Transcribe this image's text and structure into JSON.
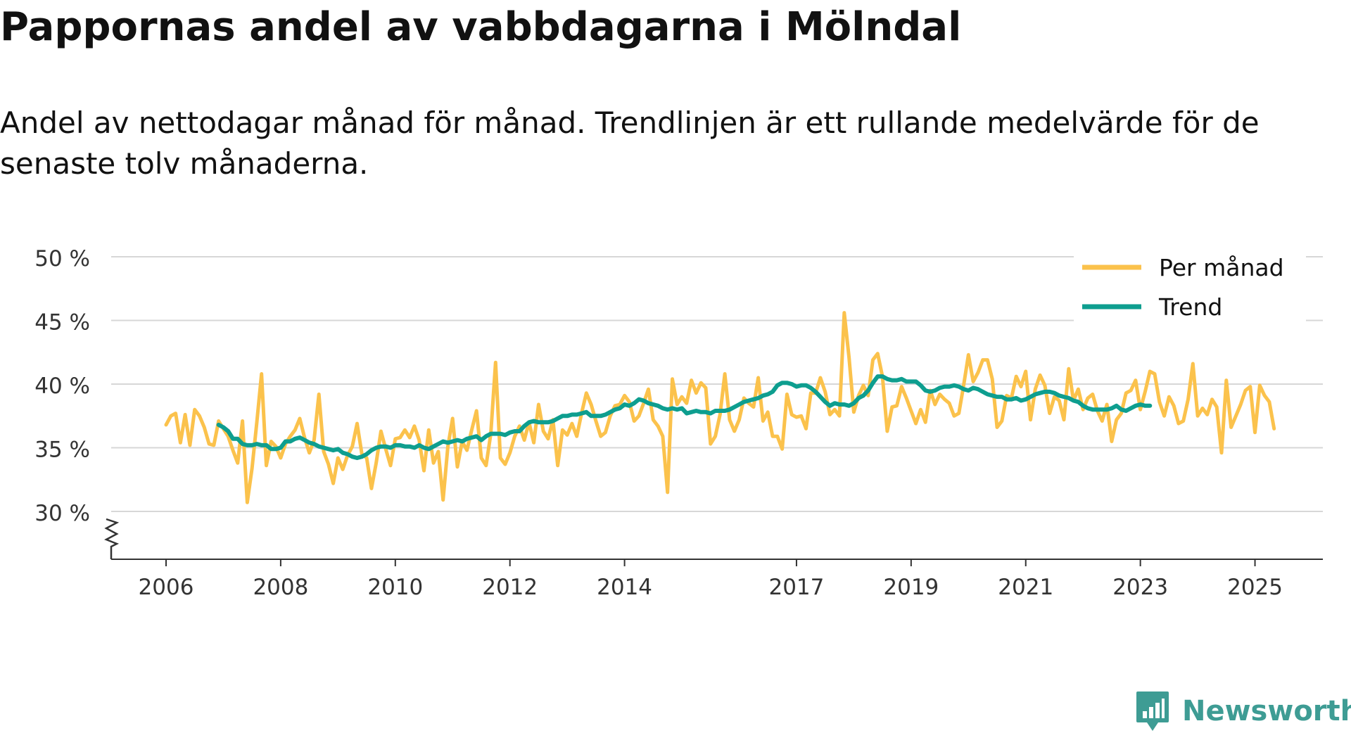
{
  "chart_data": {
    "type": "line",
    "title": "Pappornas andel av vabbdagarna i Mölndal",
    "subtitle": "Andel av nettodagar månad för månad. Trendlinjen är ett rullande medelvärde för de senaste tolv månaderna.",
    "xlabel": "",
    "ylabel": "",
    "ylim": [
      27,
      50
    ],
    "y_ticks": [
      30,
      35,
      40,
      45,
      50
    ],
    "y_tick_labels": [
      "30 %",
      "35 %",
      "40 %",
      "45 %",
      "50 %"
    ],
    "x_ticks": [
      2006,
      2008,
      2010,
      2012,
      2014,
      2017,
      2019,
      2021,
      2023,
      2025
    ],
    "x_tick_labels": [
      "2006",
      "2008",
      "2010",
      "2012",
      "2014",
      "2017",
      "2019",
      "2021",
      "2023",
      "2025"
    ],
    "x_range": [
      2006.0,
      2025.58
    ],
    "grid": true,
    "axis_break": true,
    "legend": {
      "position": "top-right"
    },
    "series": [
      {
        "name": "Per månad",
        "color": "#fbc24c",
        "x_start": 2006.0,
        "x_step": 0.0833333,
        "values": [
          36.8,
          37.5,
          37.7,
          35.4,
          37.6,
          35.2,
          38.0,
          37.5,
          36.6,
          35.3,
          35.2,
          37.1,
          36.5,
          35.9,
          34.8,
          33.8,
          37.1,
          30.7,
          33.4,
          37.0,
          40.8,
          33.6,
          35.5,
          35.1,
          34.2,
          35.3,
          35.9,
          36.4,
          37.3,
          35.8,
          34.6,
          35.6,
          39.2,
          34.7,
          33.7,
          32.2,
          34.2,
          33.3,
          34.4,
          35.1,
          36.9,
          34.5,
          34.2,
          31.8,
          33.8,
          36.3,
          34.9,
          33.6,
          35.7,
          35.8,
          36.4,
          35.8,
          36.7,
          35.6,
          33.2,
          36.4,
          33.8,
          34.7,
          30.9,
          35.1,
          37.3,
          33.5,
          35.5,
          34.8,
          36.4,
          37.9,
          34.2,
          33.6,
          36.1,
          41.7,
          34.2,
          33.7,
          34.6,
          35.9,
          36.7,
          35.6,
          37.0,
          35.4,
          38.4,
          36.3,
          35.7,
          37.2,
          33.6,
          36.4,
          36.0,
          36.9,
          35.9,
          37.7,
          39.3,
          38.4,
          37.1,
          35.9,
          36.2,
          37.5,
          38.3,
          38.4,
          39.1,
          38.6,
          37.1,
          37.5,
          38.5,
          39.6,
          37.2,
          36.7,
          35.9,
          31.5,
          40.4,
          38.4,
          39.0,
          38.5,
          40.3,
          39.3,
          40.1,
          39.7,
          35.3,
          35.9,
          37.6,
          40.8,
          37.2,
          36.3,
          37.2,
          38.9,
          38.5,
          38.2,
          40.5,
          37.1,
          37.8,
          35.9,
          35.9,
          34.9,
          39.2,
          37.6,
          37.4,
          37.5,
          36.5,
          39.3,
          39.3,
          40.5,
          39.4,
          37.6,
          38.0,
          37.5,
          45.6,
          42.1,
          37.8,
          39.1,
          39.9,
          39.1,
          41.9,
          42.4,
          40.6,
          36.3,
          38.2,
          38.3,
          39.8,
          38.9,
          37.9,
          36.9,
          38.0,
          37.0,
          39.5,
          38.4,
          39.2,
          38.8,
          38.5,
          37.5,
          37.7,
          39.9,
          42.3,
          40.2,
          40.9,
          41.9,
          41.9,
          40.4,
          36.6,
          37.1,
          39.1,
          38.9,
          40.6,
          39.8,
          41.0,
          37.2,
          39.6,
          40.7,
          39.9,
          37.7,
          39.0,
          38.7,
          37.2,
          41.2,
          38.7,
          39.6,
          38.0,
          38.9,
          39.2,
          37.9,
          37.1,
          38.4,
          35.5,
          37.2,
          37.7,
          39.3,
          39.5,
          40.3,
          38.0,
          39.4,
          41.0,
          40.8,
          38.6,
          37.5,
          39.0,
          38.3,
          36.9,
          37.1,
          38.8,
          41.6,
          37.5,
          38.1,
          37.6,
          38.8,
          38.2,
          34.6,
          40.3,
          36.6,
          37.5,
          38.4,
          39.5,
          39.8,
          36.2,
          39.9,
          39.1,
          38.6,
          36.5
        ]
      },
      {
        "name": "Trend",
        "color": "#0e9e8f",
        "x_start": 2006.917,
        "x_step": 0.0833333,
        "values": [
          36.8,
          36.6,
          36.3,
          35.7,
          35.7,
          35.3,
          35.2,
          35.2,
          35.3,
          35.2,
          35.2,
          34.9,
          34.9,
          35.0,
          35.5,
          35.5,
          35.7,
          35.8,
          35.6,
          35.4,
          35.3,
          35.1,
          35.0,
          34.9,
          34.8,
          34.9,
          34.6,
          34.5,
          34.3,
          34.2,
          34.3,
          34.5,
          34.8,
          35.0,
          35.1,
          35.1,
          35.0,
          35.2,
          35.2,
          35.1,
          35.1,
          35.0,
          35.2,
          35.0,
          34.9,
          35.1,
          35.3,
          35.5,
          35.4,
          35.5,
          35.6,
          35.5,
          35.7,
          35.8,
          35.9,
          35.6,
          35.9,
          36.1,
          36.1,
          36.1,
          36.0,
          36.2,
          36.3,
          36.3,
          36.7,
          37.0,
          37.1,
          37.0,
          37.0,
          37.0,
          37.1,
          37.3,
          37.5,
          37.5,
          37.6,
          37.6,
          37.7,
          37.8,
          37.5,
          37.5,
          37.5,
          37.6,
          37.8,
          38.0,
          38.1,
          38.4,
          38.3,
          38.5,
          38.8,
          38.7,
          38.5,
          38.4,
          38.3,
          38.1,
          38.0,
          38.1,
          38.0,
          38.1,
          37.7,
          37.8,
          37.9,
          37.8,
          37.8,
          37.7,
          37.9,
          37.9,
          37.9,
          38.0,
          38.2,
          38.4,
          38.6,
          38.7,
          38.8,
          38.9,
          39.1,
          39.2,
          39.4,
          39.9,
          40.1,
          40.1,
          40.0,
          39.8,
          39.9,
          39.9,
          39.7,
          39.4,
          39.0,
          38.6,
          38.3,
          38.5,
          38.4,
          38.4,
          38.3,
          38.5,
          38.9,
          39.1,
          39.5,
          40.1,
          40.6,
          40.6,
          40.4,
          40.3,
          40.3,
          40.4,
          40.2,
          40.2,
          40.2,
          39.9,
          39.5,
          39.4,
          39.5,
          39.7,
          39.8,
          39.8,
          39.9,
          39.8,
          39.6,
          39.5,
          39.7,
          39.6,
          39.4,
          39.2,
          39.1,
          39.0,
          39.0,
          38.8,
          38.8,
          38.9,
          38.7,
          38.8,
          39.0,
          39.2,
          39.3,
          39.4,
          39.4,
          39.3,
          39.1,
          39.0,
          38.9,
          38.7,
          38.6,
          38.3,
          38.1,
          38.0,
          38.0,
          38.0,
          38.0,
          38.1,
          38.3,
          38.0,
          37.9,
          38.1,
          38.3,
          38.4,
          38.3,
          38.3
        ]
      }
    ]
  },
  "brand": {
    "name": "Newsworthy",
    "icon": "bar-chart-logo-icon",
    "color": "#3e9c94"
  }
}
